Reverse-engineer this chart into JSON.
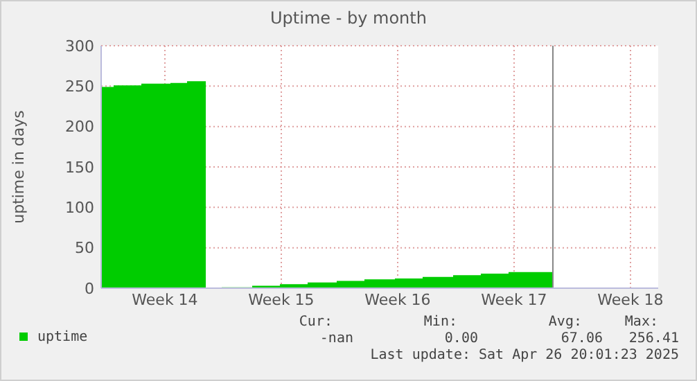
{
  "chart_data": {
    "type": "step",
    "title": "Uptime - by month",
    "ylabel": "uptime in days",
    "x": [
      "2025-03-30T16:00",
      "2025-03-31T10:00",
      "2025-04-02T02:00",
      "2025-04-03T20:00",
      "2025-04-04T20:00",
      "2025-04-05T23:00",
      "2025-04-06T22:00",
      "2025-04-08T18:00",
      "2025-04-10T10:00",
      "2025-04-12T02:00",
      "2025-04-13T20:00",
      "2025-04-15T12:00",
      "2025-04-17T08:00",
      "2025-04-19T00:00",
      "2025-04-20T20:00",
      "2025-04-22T12:00",
      "2025-04-24T04:00",
      "2025-04-26T20:00"
    ],
    "series": [
      {
        "name": "uptime",
        "color": "#00cc00",
        "type": "area",
        "values": [
          249,
          251,
          253,
          254,
          256,
          null,
          1,
          3,
          5,
          7,
          9,
          11,
          12,
          14,
          16,
          18,
          20,
          20
        ]
      }
    ],
    "xlim": [
      "2025-03-30T16:00",
      "2025-05-03T04:00"
    ],
    "xticks": [
      {
        "value": "2025-04-03T12:00",
        "label": "Week 14"
      },
      {
        "value": "2025-04-10T12:00",
        "label": "Week 15"
      },
      {
        "value": "2025-04-17T12:00",
        "label": "Week 16"
      },
      {
        "value": "2025-04-24T12:00",
        "label": "Week 17"
      },
      {
        "value": "2025-05-01T12:00",
        "label": "Week 18"
      }
    ],
    "ylim": [
      0,
      300
    ],
    "yticks": [
      0,
      50,
      100,
      150,
      200,
      250,
      300
    ],
    "grid": true,
    "legend": "bottom left",
    "ref_lines": [
      {
        "axis": "x",
        "value": "2025-04-26T20:00",
        "color": "#888888"
      }
    ],
    "annotations": [
      "Cur:",
      "Min:",
      "Avg:",
      "Max:",
      "-nan",
      "0.00",
      "67.06",
      "256.41",
      "Last update: Sat Apr 26 20:01:23 2025"
    ]
  }
}
